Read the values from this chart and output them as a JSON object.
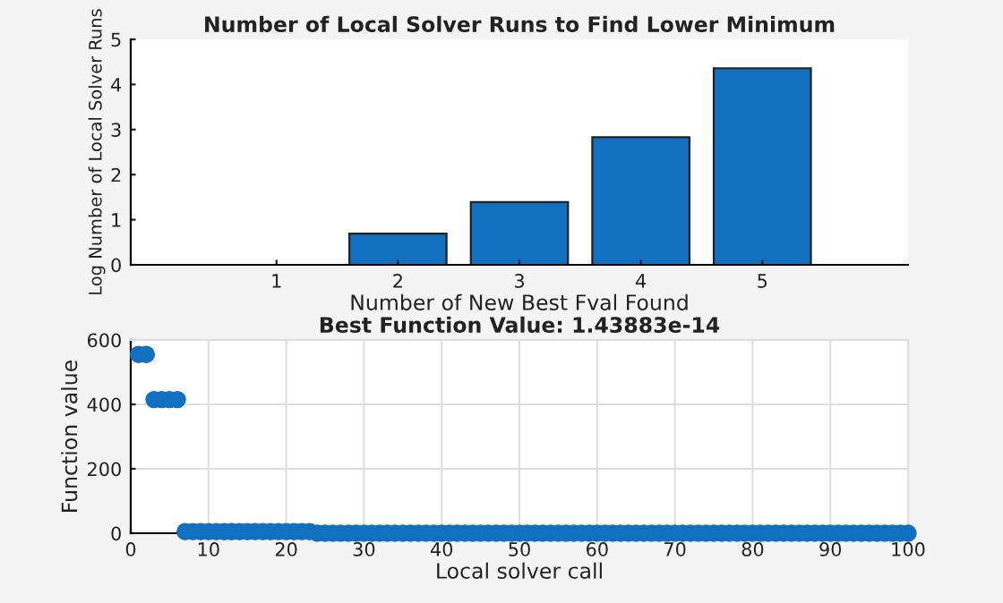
{
  "chart_data": [
    {
      "type": "bar",
      "title": "Number of Local Solver Runs to Find Lower Minimum",
      "xlabel": "Number of New Best Fval Found",
      "ylabel": "Log Number of Local Solver Runs",
      "categories": [
        "1",
        "2",
        "3",
        "4",
        "5"
      ],
      "values": [
        0,
        0.69,
        1.39,
        2.83,
        4.36
      ],
      "color": "#1170bf",
      "ylim": [
        0,
        5
      ],
      "yticks": [
        0,
        1,
        2,
        3,
        4,
        5
      ],
      "grid": false
    },
    {
      "type": "scatter",
      "title": "Best Function Value: 1.43883e-14",
      "xlabel": "Local solver call",
      "ylabel": "Function value",
      "marker": "circle",
      "grid": true,
      "series": [
        {
          "color": "#1170bf",
          "x": [
            1,
            2,
            3,
            4,
            5,
            6,
            7,
            8,
            9,
            10,
            11,
            12,
            13,
            14,
            15,
            16,
            17,
            18,
            19,
            20,
            21,
            22,
            23,
            24,
            25,
            26,
            27,
            28,
            29,
            30,
            31,
            32,
            33,
            34,
            35,
            36,
            37,
            38,
            39,
            40,
            41,
            42,
            43,
            44,
            45,
            46,
            47,
            48,
            49,
            50,
            51,
            52,
            53,
            54,
            55,
            56,
            57,
            58,
            59,
            60,
            61,
            62,
            63,
            64,
            65,
            66,
            67,
            68,
            69,
            70,
            71,
            72,
            73,
            74,
            75,
            76,
            77,
            78,
            79,
            80,
            81,
            82,
            83,
            84,
            85,
            86,
            87,
            88,
            89,
            90,
            91,
            92,
            93,
            94,
            95,
            96,
            97,
            98,
            99,
            100
          ],
          "values": [
            555,
            555,
            415,
            415,
            415,
            415,
            5,
            5,
            5,
            5,
            5,
            5,
            5,
            5,
            5,
            5,
            5,
            5,
            5,
            5,
            5,
            5,
            5,
            0,
            0,
            0,
            0,
            0,
            0,
            0,
            0,
            0,
            0,
            0,
            0,
            0,
            0,
            0,
            0,
            0,
            0,
            0,
            0,
            0,
            0,
            0,
            0,
            0,
            0,
            0,
            0,
            0,
            0,
            0,
            0,
            0,
            0,
            0,
            0,
            0,
            0,
            0,
            0,
            0,
            0,
            0,
            0,
            0,
            0,
            0,
            0,
            0,
            0,
            0,
            0,
            0,
            0,
            0,
            0,
            0,
            0,
            0,
            0,
            0,
            0,
            0,
            0,
            0,
            0,
            0,
            0,
            0,
            0,
            0,
            0,
            0,
            0,
            0,
            0,
            0
          ]
        }
      ],
      "xlim": [
        0,
        100
      ],
      "xticks": [
        0,
        10,
        20,
        30,
        40,
        50,
        60,
        70,
        80,
        90,
        100
      ],
      "ylim": [
        0,
        600
      ],
      "yticks": [
        0,
        200,
        400,
        600
      ]
    }
  ]
}
